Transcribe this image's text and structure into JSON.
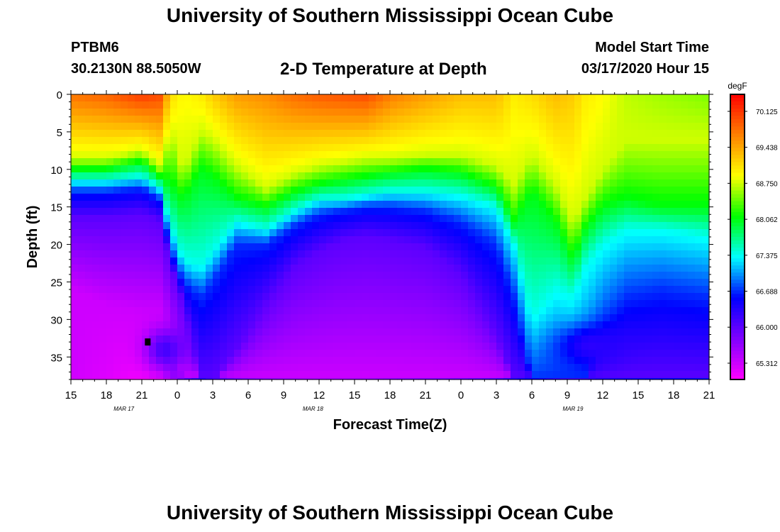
{
  "header": {
    "title": "University of Southern Mississippi Ocean Cube",
    "station_id": "PTBM6",
    "station_coords": "30.2130N 88.5050W",
    "plot_title": "2-D Temperature at Depth",
    "model_start_label": "Model Start Time",
    "model_start_value": "03/17/2020 Hour 15"
  },
  "footer": {
    "title": "University of Southern Mississippi Ocean Cube"
  },
  "chart_data": {
    "type": "heatmap",
    "title": "2-D Temperature at Depth",
    "xlabel": "Forecast Time(Z)",
    "ylabel": "Depth (ft)",
    "x_hours_range": [
      0,
      54
    ],
    "x_tick_labels": [
      "15",
      "18",
      "21",
      "0",
      "3",
      "6",
      "9",
      "12",
      "15",
      "18",
      "21",
      "0",
      "3",
      "6",
      "9",
      "12",
      "15",
      "18",
      "21"
    ],
    "date_labels": [
      {
        "hour": 4,
        "label": "MAR 17"
      },
      {
        "hour": 20,
        "label": "MAR 18"
      },
      {
        "hour": 42,
        "label": "MAR 19"
      }
    ],
    "depth_range_ft": [
      0,
      38
    ],
    "y_tick_values": [
      0,
      5,
      10,
      15,
      20,
      25,
      30,
      35
    ],
    "colorbar": {
      "unit": "degF",
      "min": 65.0,
      "max": 70.45,
      "tick_labels": [
        "70.125",
        "69.438",
        "68.750",
        "68.062",
        "67.375",
        "66.688",
        "66.000",
        "65.312"
      ],
      "tick_values": [
        70.125,
        69.438,
        68.75,
        68.062,
        67.375,
        66.688,
        66.0,
        65.312
      ],
      "colors": [
        "#ff00ff",
        "#8000ff",
        "#0000ff",
        "#00ffff",
        "#00ff00",
        "#ffff00",
        "#ff8000",
        "#ff0000"
      ]
    },
    "isotherm_depth_ft": {
      "note": "depth (ft) at which water temperature falls to each value, per forecast hour",
      "hours": [
        0,
        3,
        6,
        7.5,
        8.5,
        9.5,
        11,
        12,
        14,
        16.5,
        19,
        21,
        23,
        25,
        27,
        30,
        33,
        36,
        37.5,
        39,
        41,
        42.5,
        43.5,
        45,
        47,
        50,
        54
      ],
      "levels": [
        {
          "value": 68.75,
          "depths": [
            8.5,
            8.5,
            7.5,
            9.5,
            5,
            10,
            5,
            6,
            9.5,
            12.5,
            10.5,
            9.5,
            9,
            8.5,
            8.5,
            8,
            8,
            9.5,
            12,
            8,
            12,
            17,
            14,
            10,
            6,
            6,
            6
          ]
        },
        {
          "value": 68.06,
          "depths": [
            10,
            10,
            9,
            11,
            12,
            14,
            10,
            11,
            14,
            15,
            13,
            12,
            11.5,
            11,
            10.5,
            10,
            10.5,
            12.5,
            17,
            13,
            17,
            22,
            18,
            15,
            14,
            15,
            15
          ]
        },
        {
          "value": 67.38,
          "depths": [
            11.5,
            11.5,
            11,
            12.5,
            18,
            22,
            23,
            21,
            17,
            18,
            15.5,
            14,
            14,
            13.5,
            13,
            13,
            13.5,
            15,
            20,
            30,
            26,
            27,
            23,
            20,
            18,
            18,
            19
          ]
        },
        {
          "value": 66.69,
          "depths": [
            13,
            13,
            12.5,
            14,
            21,
            25,
            27,
            25,
            20,
            20,
            17.5,
            16,
            15.5,
            15,
            15,
            15.5,
            17,
            20,
            27,
            38,
            38,
            38,
            38,
            31,
            27,
            26,
            27
          ]
        },
        {
          "value": 66.0,
          "depths": [
            16.5,
            16.5,
            16,
            17,
            23,
            28,
            38,
            38,
            34,
            28,
            23,
            21,
            19.5,
            19,
            19.5,
            20.5,
            24,
            32,
            38,
            38,
            38,
            38,
            38,
            38,
            38,
            38,
            38
          ]
        },
        {
          "value": 65.31,
          "depths": [
            26,
            28,
            29,
            29,
            33,
            38,
            38,
            38,
            38,
            38,
            38,
            38,
            38,
            38,
            38,
            38,
            38,
            38,
            38,
            38,
            38,
            38,
            38,
            38,
            38,
            38,
            38
          ]
        }
      ],
      "surface_temp": [
        69.75,
        69.85,
        70.1,
        70.0,
        69.1,
        68.9,
        69.0,
        69.2,
        69.5,
        69.6,
        69.8,
        69.9,
        69.95,
        70.0,
        69.7,
        69.5,
        69.3,
        69.3,
        69.0,
        69.1,
        69.3,
        69.2,
        69.0,
        68.9,
        68.7,
        68.6,
        68.5
      ],
      "bottom_temp": [
        65.3,
        65.2,
        65.05,
        65.1,
        65.5,
        66.0,
        66.4,
        66.2,
        65.9,
        65.7,
        65.6,
        65.55,
        65.55,
        65.6,
        65.7,
        65.8,
        65.9,
        66.1,
        66.4,
        66.6,
        66.3,
        66.2,
        66.25,
        66.4,
        66.5,
        66.55,
        66.6
      ]
    },
    "blob_patches": [
      {
        "center_hour": 44,
        "center_depth": 33.5,
        "half_width_hours": 3.5,
        "half_height_ft": 3.5,
        "temperature": 66.3
      },
      {
        "center_hour": 8,
        "center_depth": 34,
        "half_width_hours": 2.2,
        "half_height_ft": 3.5,
        "temperature": 66.15
      }
    ],
    "marker": {
      "hour": 6.5,
      "depth_ft": 33
    }
  }
}
